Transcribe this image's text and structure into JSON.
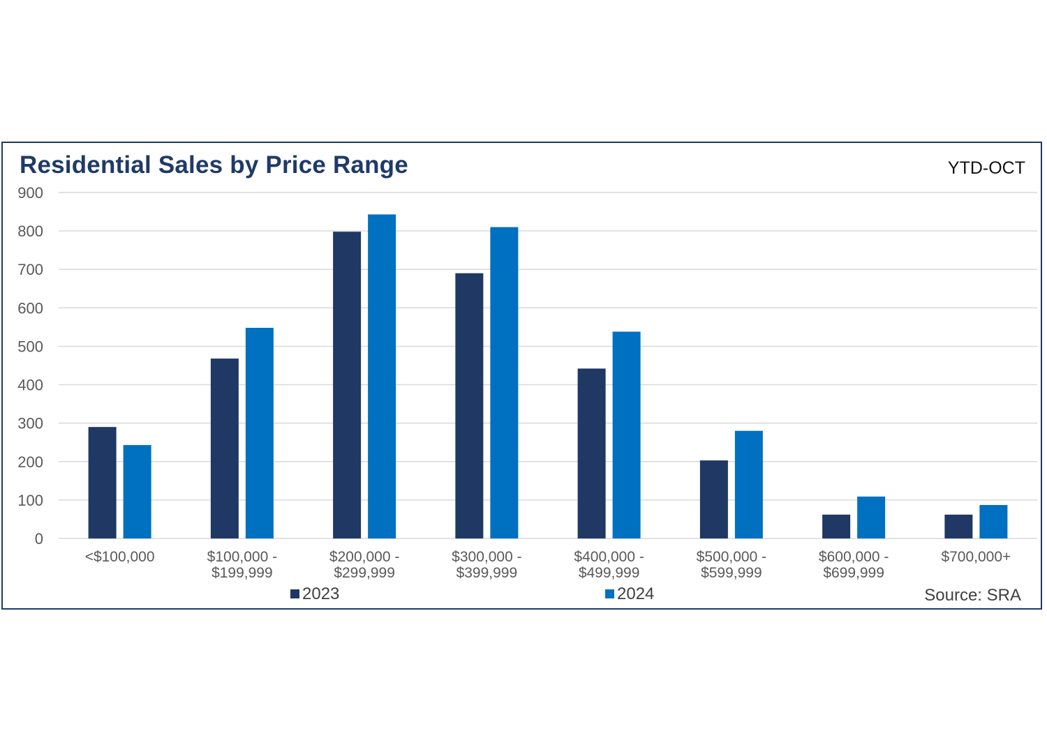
{
  "chart": {
    "title": "Residential Sales by Price Range",
    "period_tag": "YTD-OCT",
    "source": "Source: SRA"
  },
  "chart_data": {
    "type": "bar",
    "title": "Residential Sales by Price Range",
    "categories": [
      [
        "<$100,000"
      ],
      [
        "$100,000 -",
        "$199,999"
      ],
      [
        "$200,000 -",
        "$299,999"
      ],
      [
        "$300,000 -",
        "$399,999"
      ],
      [
        "$400,000 -",
        "$499,999"
      ],
      [
        "$500,000 -",
        "$599,999"
      ],
      [
        "$600,000 -",
        "$699,999"
      ],
      [
        "$700,000+"
      ]
    ],
    "series": [
      {
        "name": "2023",
        "color": "#1f3864",
        "values": [
          290,
          468,
          798,
          690,
          442,
          203,
          62,
          62
        ]
      },
      {
        "name": "2024",
        "color": "#0070c0",
        "values": [
          243,
          548,
          843,
          810,
          538,
          280,
          109,
          87
        ]
      }
    ],
    "xlabel": "",
    "ylabel": "",
    "ylim": [
      0,
      900
    ],
    "yticks": [
      0,
      100,
      200,
      300,
      400,
      500,
      600,
      700,
      800,
      900
    ],
    "grid": true,
    "legend_position": "bottom",
    "gridline_color": "#d9d9d9"
  }
}
